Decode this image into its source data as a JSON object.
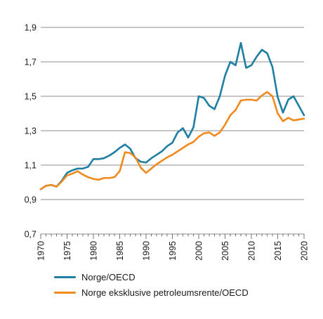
{
  "chart_data": {
    "type": "line",
    "title": "",
    "xlabel": "",
    "ylabel": "",
    "xlim": [
      1970,
      2020
    ],
    "ylim": [
      0.7,
      1.9
    ],
    "y_ticks": [
      "0,7",
      "0,9",
      "1,1",
      "1,3",
      "1,5",
      "1,7",
      "1,9"
    ],
    "x_ticks": [
      "1970",
      "1975",
      "1980",
      "1985",
      "1990",
      "1995",
      "2000",
      "2005",
      "2010",
      "2015",
      "2020"
    ],
    "grid": "horizontal",
    "legend_position": "bottom-left",
    "x": [
      1970,
      1971,
      1972,
      1973,
      1974,
      1975,
      1976,
      1977,
      1978,
      1979,
      1980,
      1981,
      1982,
      1983,
      1984,
      1985,
      1986,
      1987,
      1988,
      1989,
      1990,
      1991,
      1992,
      1993,
      1994,
      1995,
      1996,
      1997,
      1998,
      1999,
      2000,
      2001,
      2002,
      2003,
      2004,
      2005,
      2006,
      2007,
      2008,
      2009,
      2010,
      2011,
      2012,
      2013,
      2014,
      2015,
      2016,
      2017,
      2018,
      2019,
      2020
    ],
    "series": [
      {
        "name": "Norge/OECD",
        "color": "#1f7fa3",
        "values": [
          0.96,
          0.98,
          0.985,
          0.975,
          1.01,
          1.055,
          1.07,
          1.08,
          1.08,
          1.09,
          1.135,
          1.135,
          1.14,
          1.155,
          1.175,
          1.2,
          1.22,
          1.195,
          1.14,
          1.12,
          1.115,
          1.14,
          1.16,
          1.18,
          1.21,
          1.23,
          1.29,
          1.315,
          1.26,
          1.32,
          1.5,
          1.49,
          1.445,
          1.425,
          1.5,
          1.62,
          1.7,
          1.68,
          1.81,
          1.665,
          1.68,
          1.73,
          1.77,
          1.75,
          1.67,
          1.495,
          1.405,
          1.48,
          1.5,
          1.445,
          1.39
        ]
      },
      {
        "name": "Norge eksklusive petroleumsrente/OECD",
        "color": "#f08a1c",
        "values": [
          0.96,
          0.98,
          0.985,
          0.975,
          1.005,
          1.04,
          1.05,
          1.065,
          1.045,
          1.03,
          1.02,
          1.015,
          1.025,
          1.025,
          1.03,
          1.065,
          1.175,
          1.17,
          1.145,
          1.085,
          1.055,
          1.08,
          1.105,
          1.125,
          1.145,
          1.16,
          1.18,
          1.2,
          1.22,
          1.235,
          1.265,
          1.285,
          1.29,
          1.27,
          1.29,
          1.335,
          1.39,
          1.42,
          1.475,
          1.48,
          1.48,
          1.475,
          1.505,
          1.525,
          1.5,
          1.4,
          1.355,
          1.375,
          1.36,
          1.365,
          1.37
        ]
      }
    ]
  }
}
